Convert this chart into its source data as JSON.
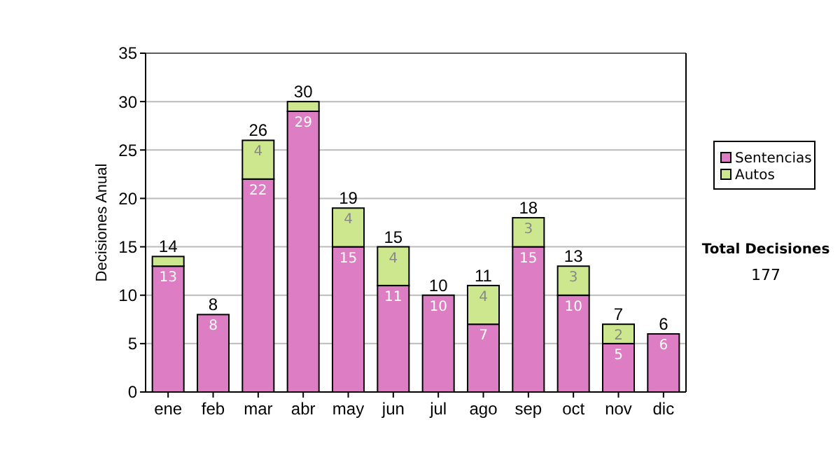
{
  "chart_data": {
    "type": "bar",
    "stacked": true,
    "ylabel": "Decisiones Anual",
    "categories": [
      "ene",
      "feb",
      "mar",
      "abr",
      "may",
      "jun",
      "jul",
      "ago",
      "sep",
      "oct",
      "nov",
      "dic"
    ],
    "series": [
      {
        "name": "Sentencias",
        "color": "#dd7dc4",
        "values": [
          13,
          8,
          22,
          29,
          15,
          11,
          10,
          7,
          15,
          10,
          5,
          6
        ],
        "value_labels": [
          "13",
          "8",
          "22",
          "29",
          "15",
          "11",
          "10",
          "7",
          "15",
          "10",
          "5",
          "6"
        ]
      },
      {
        "name": "Autos",
        "color": "#cde78f",
        "values": [
          1,
          0,
          4,
          1,
          4,
          4,
          0,
          4,
          3,
          3,
          2,
          0
        ],
        "value_labels": [
          null,
          null,
          "4",
          null,
          "4",
          "4",
          null,
          "4",
          "3",
          "3",
          "2",
          null
        ]
      }
    ],
    "totals": [
      "14",
      "8",
      "26",
      "30",
      "19",
      "15",
      "10",
      "11",
      "18",
      "13",
      "7",
      "6"
    ],
    "ylim": [
      0,
      35
    ],
    "yticks": [
      0,
      5,
      10,
      15,
      20,
      25,
      30,
      35
    ],
    "grid": "y",
    "legend": "right",
    "annotations": [
      "Total Decisiones",
      "177"
    ]
  }
}
